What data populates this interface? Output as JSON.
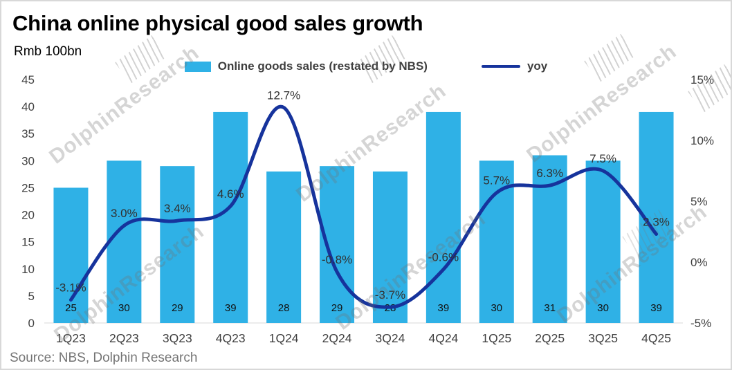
{
  "title": "China online physical good sales growth",
  "unit_label": "Rmb 100bn",
  "source": "Source: NBS, Dolphin Research",
  "watermark_text": "DolphinResearch",
  "legend": {
    "bars_label": "Online goods sales (restated by NBS)",
    "yoy_label": "yoy"
  },
  "colors": {
    "bar": "#2FB1E6",
    "line": "#16339C",
    "axis_text": "#404040",
    "bar_label_text": "#111111",
    "yoy_label_text": "#303030",
    "axis_line": "#d9d9d9"
  },
  "chart_data": {
    "type": "bar",
    "subtype": "bar+line-combo",
    "categories": [
      "1Q23",
      "2Q23",
      "3Q23",
      "4Q23",
      "1Q24",
      "2Q24",
      "3Q24",
      "4Q24",
      "1Q25",
      "2Q25",
      "3Q25",
      "4Q25"
    ],
    "series": [
      {
        "name": "Online goods sales (restated by NBS)",
        "type": "bar",
        "axis": "left",
        "values": [
          25,
          30,
          29,
          39,
          28,
          29,
          28,
          39,
          30,
          31,
          30,
          39
        ],
        "value_labels": [
          "25",
          "30",
          "29",
          "39",
          "28",
          "29",
          "28",
          "39",
          "30",
          "31",
          "30",
          "39"
        ]
      },
      {
        "name": "yoy",
        "type": "line",
        "axis": "right",
        "values": [
          -3.1,
          3.0,
          3.4,
          4.6,
          12.7,
          -0.8,
          -3.7,
          -0.6,
          5.7,
          6.3,
          7.5,
          2.3
        ],
        "value_labels": [
          "-3.1%",
          "3.0%",
          "3.4%",
          "4.6%",
          "12.7%",
          "-0.8%",
          "-3.7%",
          "-0.6%",
          "5.7%",
          "6.3%",
          "7.5%",
          "2.3%"
        ]
      }
    ],
    "left_axis": {
      "title": "Rmb 100bn",
      "min": 0,
      "max": 45,
      "tick_step": 5,
      "ticks": [
        "45",
        "40",
        "35",
        "30",
        "25",
        "20",
        "15",
        "10",
        "5",
        "0"
      ],
      "tick_values": [
        45,
        40,
        35,
        30,
        25,
        20,
        15,
        10,
        5,
        0
      ]
    },
    "right_axis": {
      "min": -5,
      "max": 15,
      "tick_step": 5,
      "ticks": [
        "15%",
        "10%",
        "5%",
        "0%",
        "-5%"
      ],
      "tick_values": [
        15,
        10,
        5,
        0,
        -5
      ]
    },
    "legend_position": "top-center",
    "grid": false
  }
}
